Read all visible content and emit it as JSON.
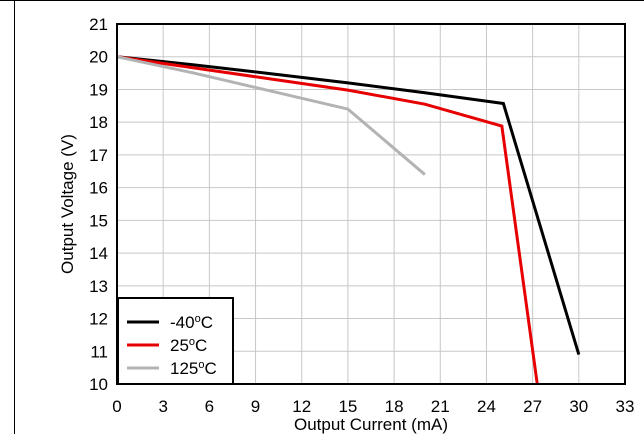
{
  "chart_data": {
    "type": "line",
    "xlabel": "Output Current (mA)",
    "ylabel": "Output Voltage (V)",
    "xlim": [
      0,
      33
    ],
    "ylim": [
      10,
      21
    ],
    "xticks": [
      0,
      3,
      6,
      9,
      12,
      15,
      18,
      21,
      24,
      27,
      30,
      33
    ],
    "yticks": [
      10,
      11,
      12,
      13,
      14,
      15,
      16,
      17,
      18,
      19,
      20,
      21
    ],
    "grid": true,
    "legend_position": "bottom-left",
    "series": [
      {
        "name": "-40°C",
        "label_base": "-40",
        "label_sup": "o",
        "label_tail": "C",
        "color": "#000000",
        "x": [
          0,
          5,
          10,
          15,
          20,
          25.1,
          30
        ],
        "y": [
          20.0,
          19.75,
          19.48,
          19.2,
          18.9,
          18.57,
          10.9
        ]
      },
      {
        "name": "25°C",
        "label_base": "25",
        "label_sup": "o",
        "label_tail": "C",
        "color": "#e60000",
        "x": [
          0,
          5,
          10,
          15,
          20,
          25,
          27.3
        ],
        "y": [
          20.0,
          19.66,
          19.32,
          18.98,
          18.55,
          17.88,
          10.0
        ]
      },
      {
        "name": "125°C",
        "label_base": "125",
        "label_sup": "o",
        "label_tail": "C",
        "color": "#b3b3b3",
        "x": [
          0,
          5,
          10,
          15,
          20
        ],
        "y": [
          20.0,
          19.5,
          18.95,
          18.4,
          16.4
        ]
      }
    ]
  }
}
